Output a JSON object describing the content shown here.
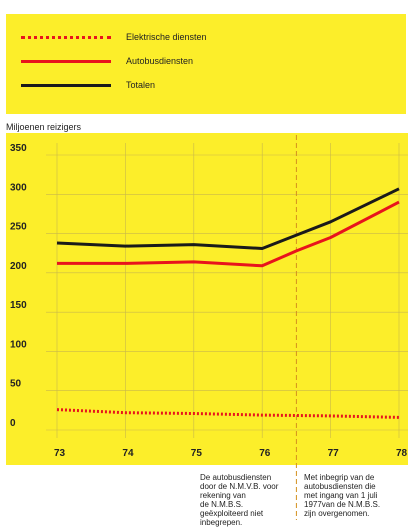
{
  "legend": {
    "items": [
      {
        "label": "Elektrische diensten",
        "color": "#e8141c",
        "style": "dotted"
      },
      {
        "label": "Autobusdiensten",
        "color": "#e8141c",
        "style": "solid"
      },
      {
        "label": "Totalen",
        "color": "#1a1a1a",
        "style": "solid"
      }
    ]
  },
  "colors": {
    "background": "#fcee2a",
    "grid": "#c9b84a",
    "divider": "#d4901e"
  },
  "chart_data": {
    "type": "line",
    "ylabel": "Miljoenen reizigers",
    "xlabel": "",
    "x": [
      "73",
      "74",
      "75",
      "76",
      "77",
      "78"
    ],
    "yticks": [
      0,
      50,
      100,
      150,
      200,
      250,
      300,
      350
    ],
    "ylim": [
      -25,
      365
    ],
    "grid": true,
    "legend_position": "top",
    "divider_x": 76.5,
    "series": [
      {
        "name": "Elektrische diensten",
        "x": [
          73,
          74,
          75,
          76,
          77,
          78
        ],
        "values": [
          26,
          22,
          21,
          19,
          18,
          16
        ]
      },
      {
        "name": "Autobusdiensten",
        "x": [
          73,
          74,
          75,
          76,
          76.5,
          77,
          78
        ],
        "values": [
          212,
          212,
          214,
          209,
          228,
          245,
          290
        ]
      },
      {
        "name": "Totalen",
        "x": [
          73,
          74,
          75,
          76,
          76.5,
          77,
          78
        ],
        "values": [
          238,
          234,
          236,
          231,
          248,
          265,
          307
        ]
      }
    ]
  },
  "notes": {
    "left": "De autobusdiensten\ndoor de N.M.V.B. voor\nrekening van\nde N.M.B.S.\ngeëxploiteerd niet\ninbegrepen.",
    "right": "Met inbegrip van de\nautobusdiensten die\nmet ingang van 1 juli\n1977van de N.M.B.S.\nzijn overgenomen."
  }
}
